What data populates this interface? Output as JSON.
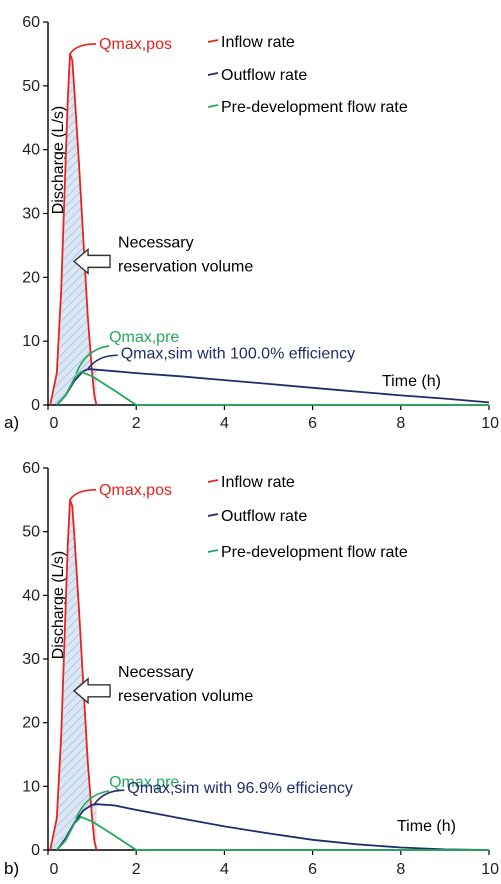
{
  "chart_data": [
    {
      "type": "line",
      "panel_label": "a)",
      "xlabel": "Time (h)",
      "ylabel": "Discharge (L/s)",
      "xlim": [
        0,
        10
      ],
      "ylim": [
        0,
        60
      ],
      "xticks": [
        0,
        2,
        4,
        6,
        8,
        10
      ],
      "yticks": [
        0,
        10,
        20,
        30,
        40,
        50,
        60
      ],
      "grid": false,
      "legend_position": "top-right",
      "series": [
        {
          "name": "Inflow rate",
          "color": "#e8231c",
          "x": [
            0.05,
            0.2,
            0.3,
            0.4,
            0.45,
            0.5,
            0.55,
            0.6,
            0.7,
            0.8,
            0.9,
            1.0,
            1.05,
            1.1
          ],
          "y": [
            0,
            5,
            18,
            38,
            48,
            55,
            54,
            49,
            38,
            26,
            14,
            5,
            1.5,
            0
          ]
        },
        {
          "name": "Outflow rate",
          "color": "#1f2d6b",
          "x": [
            0.2,
            0.4,
            0.6,
            0.8,
            0.9,
            1.0,
            1.5,
            2,
            3,
            4,
            5,
            6,
            7,
            8,
            9,
            10
          ],
          "y": [
            0,
            1.5,
            3.8,
            5.3,
            5.6,
            5.6,
            5.3,
            5.0,
            4.5,
            3.9,
            3.3,
            2.7,
            2.1,
            1.5,
            1.0,
            0.4
          ]
        },
        {
          "name": "Pre-development flow rate",
          "color": "#22a95a",
          "x": [
            0.2,
            0.4,
            0.6,
            0.75,
            1.0,
            1.5,
            2.0,
            2.5,
            10
          ],
          "y": [
            0,
            1.5,
            4.2,
            5.2,
            4.5,
            2.3,
            0,
            0,
            0
          ]
        }
      ],
      "annotations": {
        "qmax_pos": {
          "text": "Qmax,pos",
          "x": 0.5,
          "y": 55
        },
        "qmax_pre": {
          "text": "Qmax,pre",
          "x": 0.75,
          "y": 5.2
        },
        "qmax_sim": {
          "text": "Qmax,sim with 100.0% efficiency",
          "x": 0.9,
          "y": 5.6
        },
        "reservation": {
          "line1": "Necessary",
          "line2": "reservation volume",
          "x": 0.5,
          "y": 22.5
        }
      }
    },
    {
      "type": "line",
      "panel_label": "b)",
      "xlabel": "Time (h)",
      "ylabel": "Discharge (L/s)",
      "xlim": [
        0,
        10
      ],
      "ylim": [
        0,
        60
      ],
      "xticks": [
        0,
        2,
        4,
        6,
        8,
        10
      ],
      "yticks": [
        0,
        10,
        20,
        30,
        40,
        50,
        60
      ],
      "grid": false,
      "legend_position": "top-right",
      "series": [
        {
          "name": "Inflow rate",
          "color": "#e8231c",
          "x": [
            0.05,
            0.2,
            0.3,
            0.4,
            0.45,
            0.5,
            0.55,
            0.6,
            0.7,
            0.8,
            0.9,
            1.0,
            1.05,
            1.1
          ],
          "y": [
            0,
            5,
            18,
            38,
            48,
            55,
            54,
            49,
            38,
            26,
            14,
            5,
            1.5,
            0
          ]
        },
        {
          "name": "Outflow rate",
          "color": "#1f2d6b",
          "x": [
            0.2,
            0.4,
            0.6,
            0.8,
            1.0,
            1.1,
            1.5,
            2,
            3,
            4,
            5,
            6,
            7,
            8,
            9,
            10
          ],
          "y": [
            0,
            1.8,
            4.3,
            6.2,
            7.1,
            7.2,
            7.0,
            6.3,
            5.0,
            3.7,
            2.6,
            1.6,
            0.9,
            0.4,
            0.1,
            0
          ]
        },
        {
          "name": "Pre-development flow rate",
          "color": "#22a95a",
          "x": [
            0.2,
            0.4,
            0.6,
            0.75,
            1.0,
            1.5,
            2.0,
            2.5,
            10
          ],
          "y": [
            0,
            1.5,
            4.2,
            5.2,
            4.5,
            2.3,
            0,
            0,
            0
          ]
        }
      ],
      "annotations": {
        "qmax_pos": {
          "text": "Qmax,pos",
          "x": 0.5,
          "y": 55
        },
        "qmax_pre": {
          "text": "Qmax,pre",
          "x": 0.75,
          "y": 5.2
        },
        "qmax_sim": {
          "text": "Qmax,sim with 96.9% efficiency",
          "x": 1.05,
          "y": 7.2
        },
        "reservation": {
          "line1": "Necessary",
          "line2": "reservation volume",
          "x": 0.5,
          "y": 25
        }
      }
    }
  ]
}
